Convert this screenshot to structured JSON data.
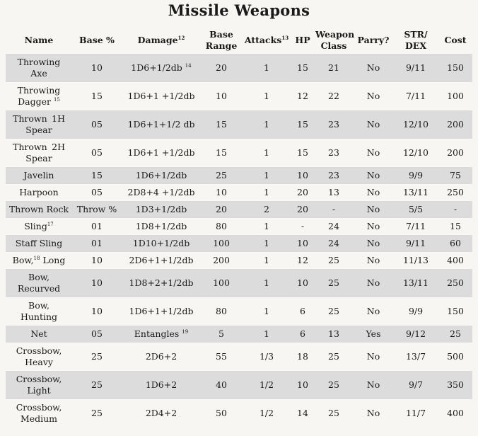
{
  "title": "Missile Weapons",
  "headers": {
    "name": "Name",
    "base": "Base %",
    "damage": "Damage",
    "damage_note": "12",
    "range_1": "Base",
    "range_2": "Range",
    "attacks": "Attacks",
    "attacks_note": "13",
    "hp": "HP",
    "wc_1": "Weapon",
    "wc_2": "Class",
    "parry": "Parry?",
    "strdex_1": "STR/",
    "strdex_2": "DEX",
    "cost": "Cost"
  },
  "rows": [
    {
      "name_1": "Throwing",
      "name_2": "Axe",
      "name_note": "",
      "base": "10",
      "damage": "1D6+1/2db",
      "damage_note": "14",
      "range": "20",
      "attacks": "1",
      "hp": "15",
      "wc": "21",
      "parry": "No",
      "strdex": "9/11",
      "cost": "150"
    },
    {
      "name_1": "Throwing",
      "name_2": "Dagger",
      "name_note": "15",
      "base": "15",
      "damage": "1D6+1 +1/2db",
      "damage_note": "",
      "range": "10",
      "attacks": "1",
      "hp": "12",
      "wc": "22",
      "parry": "No",
      "strdex": "7/11",
      "cost": "100"
    },
    {
      "name_1": "Thrown",
      "name_1b": "1H",
      "name_2": "Spear",
      "name_note": "",
      "base": "05",
      "damage": "1D6+1+1/2 db",
      "damage_note": "",
      "range": "15",
      "attacks": "1",
      "hp": "15",
      "wc": "23",
      "parry": "No",
      "strdex": "12/10",
      "cost": "200"
    },
    {
      "name_1": "Thrown",
      "name_1b": "2H",
      "name_2": "Spear",
      "name_note": "",
      "base": "05",
      "damage": "1D6+1 +1/2db",
      "damage_note": "",
      "range": "15",
      "attacks": "1",
      "hp": "15",
      "wc": "23",
      "parry": "No",
      "strdex": "12/10",
      "cost": "200"
    },
    {
      "name_1": "Javelin",
      "name_2": "",
      "name_note": "",
      "base": "15",
      "damage": "1D6+1/2db",
      "damage_note": "",
      "range": "25",
      "attacks": "1",
      "hp": "10",
      "wc": "23",
      "parry": "No",
      "strdex": "9/9",
      "cost": "75"
    },
    {
      "name_1": "Harpoon",
      "name_2": "",
      "name_note": "",
      "base": "05",
      "damage": "2D8+4 +1/2db",
      "damage_note": "",
      "range": "10",
      "attacks": "1",
      "hp": "20",
      "wc": "13",
      "parry": "No",
      "strdex": "13/11",
      "cost": "250"
    },
    {
      "name_1": "Thrown Rock",
      "name_2": "",
      "name_note": "",
      "base": "Throw %",
      "damage": "1D3+1/2db",
      "damage_note": "",
      "range": "20",
      "attacks": "2",
      "hp": "20",
      "wc": "-",
      "parry": "No",
      "strdex": "5/5",
      "cost": "-"
    },
    {
      "name_1": "Sling",
      "name_2": "",
      "name_note": "17",
      "base": "01",
      "damage": "1D8+1/2db",
      "damage_note": "",
      "range": "80",
      "attacks": "1",
      "hp": "-",
      "wc": "24",
      "parry": "No",
      "strdex": "7/11",
      "cost": "15"
    },
    {
      "name_1": "Staff Sling",
      "name_2": "",
      "name_note": "",
      "base": "01",
      "damage": "1D10+1/2db",
      "damage_note": "",
      "range": "100",
      "attacks": "1",
      "hp": "10",
      "wc": "24",
      "parry": "No",
      "strdex": "9/11",
      "cost": "60"
    },
    {
      "name_1": "Bow,",
      "name_1c": "Long",
      "name_2": "",
      "name_note": "18",
      "base": "10",
      "damage": "2D6+1+1/2db",
      "damage_note": "",
      "range": "200",
      "attacks": "1",
      "hp": "12",
      "wc": "25",
      "parry": "No",
      "strdex": "11/13",
      "cost": "400"
    },
    {
      "name_1": "Bow,",
      "name_2": "Recurved",
      "name_note": "",
      "base": "10",
      "damage": "1D8+2+1/2db",
      "damage_note": "",
      "range": "100",
      "attacks": "1",
      "hp": "10",
      "wc": "25",
      "parry": "No",
      "strdex": "13/11",
      "cost": "250"
    },
    {
      "name_1": "Bow,",
      "name_2": "Hunting",
      "name_note": "",
      "base": "10",
      "damage": "1D6+1+1/2db",
      "damage_note": "",
      "range": "80",
      "attacks": "1",
      "hp": "6",
      "wc": "25",
      "parry": "No",
      "strdex": "9/9",
      "cost": "150"
    },
    {
      "name_1": "Net",
      "name_2": "",
      "name_note": "",
      "base": "05",
      "damage": "Entangles",
      "damage_note": "19",
      "range": "5",
      "attacks": "1",
      "hp": "6",
      "wc": "13",
      "parry": "Yes",
      "strdex": "9/12",
      "cost": "25"
    },
    {
      "name_1": "Crossbow,",
      "name_2": "Heavy",
      "name_note": "",
      "base": "25",
      "damage": "2D6+2",
      "damage_note": "",
      "range": "55",
      "attacks": "1/3",
      "hp": "18",
      "wc": "25",
      "parry": "No",
      "strdex": "13/7",
      "cost": "500"
    },
    {
      "name_1": "Crossbow,",
      "name_2": "Light",
      "name_note": "",
      "base": "25",
      "damage": "1D6+2",
      "damage_note": "",
      "range": "40",
      "attacks": "1/2",
      "hp": "10",
      "wc": "25",
      "parry": "No",
      "strdex": "9/7",
      "cost": "350"
    },
    {
      "name_1": "Crossbow,",
      "name_2": "Medium",
      "name_note": "",
      "base": "25",
      "damage": "2D4+2",
      "damage_note": "",
      "range": "50",
      "attacks": "1/2",
      "hp": "14",
      "wc": "25",
      "parry": "No",
      "strdex": "11/7",
      "cost": "400"
    }
  ]
}
